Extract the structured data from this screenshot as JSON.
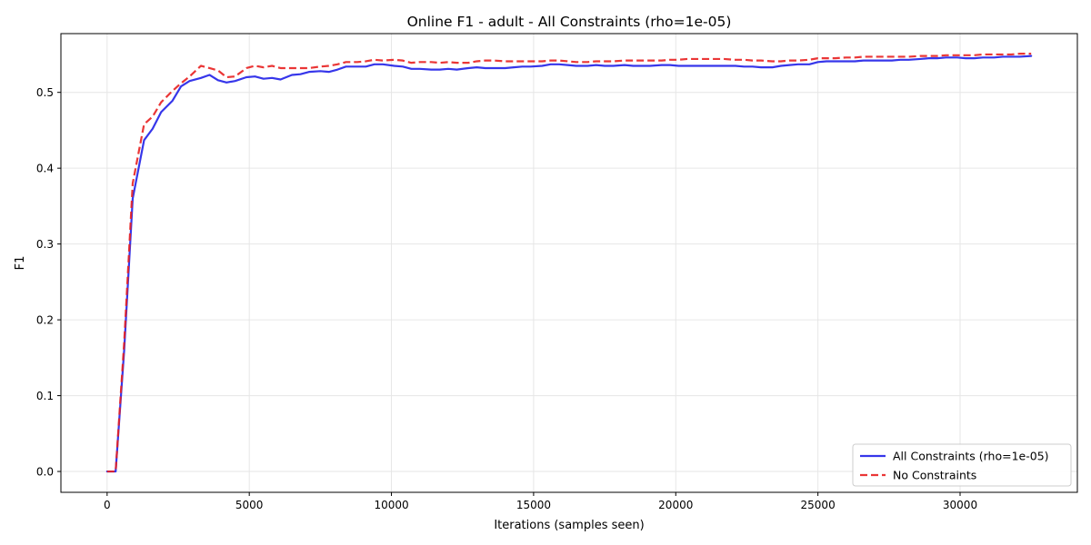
{
  "chart_data": {
    "type": "line",
    "title": "Online F1 - adult - All Constraints (rho=1e-05)",
    "xlabel": "Iterations (samples seen)",
    "ylabel": "F1",
    "xlim": [
      -1625,
      34125
    ],
    "ylim": [
      -0.0275,
      0.5775
    ],
    "xticks": [
      0,
      5000,
      10000,
      15000,
      20000,
      25000,
      30000
    ],
    "xtick_labels": [
      "0",
      "5000",
      "10000",
      "15000",
      "20000",
      "25000",
      "30000"
    ],
    "yticks": [
      0.0,
      0.1,
      0.2,
      0.3,
      0.4,
      0.5
    ],
    "ytick_labels": [
      "0.0",
      "0.1",
      "0.2",
      "0.3",
      "0.4",
      "0.5"
    ],
    "grid": true,
    "legend_position": "lower-right",
    "series": [
      {
        "name": "All Constraints (rho=1e-05)",
        "color": "#2020e8",
        "style": "solid",
        "x": [
          0,
          300,
          600,
          900,
          1300,
          1600,
          1900,
          2300,
          2600,
          2900,
          3300,
          3600,
          3900,
          4200,
          4500,
          4900,
          5200,
          5500,
          5800,
          6100,
          6500,
          6800,
          7100,
          7500,
          7800,
          8100,
          8400,
          8800,
          9100,
          9400,
          9700,
          10100,
          10400,
          10700,
          11000,
          11400,
          11700,
          12000,
          12300,
          12700,
          13000,
          13300,
          13600,
          14000,
          14300,
          14600,
          14900,
          15300,
          15600,
          15900,
          16200,
          16500,
          16900,
          17200,
          17500,
          17800,
          18200,
          18500,
          18800,
          19100,
          19500,
          19800,
          20100,
          20400,
          20800,
          21100,
          21400,
          21700,
          22100,
          22400,
          22700,
          23000,
          23400,
          23700,
          24000,
          24300,
          24700,
          25000,
          25300,
          25600,
          26000,
          26300,
          26600,
          26900,
          27300,
          27600,
          27900,
          28200,
          28600,
          28900,
          29200,
          29500,
          29900,
          30200,
          30500,
          30800,
          31200,
          31500,
          31800,
          32100,
          32500
        ],
        "y": [
          0.0,
          0.0,
          0.16,
          0.36,
          0.437,
          0.452,
          0.474,
          0.489,
          0.508,
          0.515,
          0.519,
          0.523,
          0.516,
          0.513,
          0.515,
          0.52,
          0.521,
          0.518,
          0.519,
          0.517,
          0.523,
          0.524,
          0.527,
          0.528,
          0.527,
          0.53,
          0.534,
          0.534,
          0.534,
          0.537,
          0.537,
          0.535,
          0.534,
          0.531,
          0.531,
          0.53,
          0.53,
          0.531,
          0.53,
          0.532,
          0.533,
          0.532,
          0.532,
          0.532,
          0.533,
          0.534,
          0.534,
          0.535,
          0.537,
          0.537,
          0.536,
          0.535,
          0.535,
          0.536,
          0.535,
          0.535,
          0.536,
          0.535,
          0.535,
          0.535,
          0.536,
          0.536,
          0.535,
          0.535,
          0.535,
          0.535,
          0.535,
          0.535,
          0.535,
          0.534,
          0.534,
          0.533,
          0.533,
          0.535,
          0.536,
          0.537,
          0.537,
          0.54,
          0.541,
          0.541,
          0.541,
          0.541,
          0.542,
          0.542,
          0.542,
          0.542,
          0.543,
          0.543,
          0.544,
          0.545,
          0.545,
          0.546,
          0.546,
          0.545,
          0.545,
          0.546,
          0.546,
          0.547,
          0.547,
          0.547,
          0.548
        ]
      },
      {
        "name": "No Constraints",
        "color": "#e82020",
        "style": "dashed",
        "x": [
          0,
          300,
          600,
          900,
          1300,
          1600,
          1900,
          2300,
          2600,
          2900,
          3300,
          3600,
          3900,
          4200,
          4500,
          4900,
          5200,
          5500,
          5800,
          6100,
          6500,
          6800,
          7100,
          7500,
          7800,
          8100,
          8400,
          8800,
          9100,
          9400,
          9700,
          10100,
          10400,
          10700,
          11000,
          11400,
          11700,
          12000,
          12300,
          12700,
          13000,
          13300,
          13600,
          14000,
          14300,
          14600,
          14900,
          15300,
          15600,
          15900,
          16200,
          16500,
          16900,
          17200,
          17500,
          17800,
          18200,
          18500,
          18800,
          19100,
          19500,
          19800,
          20100,
          20400,
          20800,
          21100,
          21400,
          21700,
          22100,
          22400,
          22700,
          23000,
          23400,
          23700,
          24000,
          24300,
          24700,
          25000,
          25300,
          25600,
          26000,
          26300,
          26600,
          26900,
          27300,
          27600,
          27900,
          28200,
          28600,
          28900,
          29200,
          29500,
          29900,
          30200,
          30500,
          30800,
          31200,
          31500,
          31800,
          32100,
          32500
        ],
        "y": [
          0.0,
          0.0,
          0.17,
          0.38,
          0.458,
          0.468,
          0.487,
          0.502,
          0.512,
          0.521,
          0.535,
          0.532,
          0.529,
          0.52,
          0.521,
          0.532,
          0.535,
          0.533,
          0.535,
          0.532,
          0.532,
          0.532,
          0.532,
          0.534,
          0.535,
          0.537,
          0.54,
          0.54,
          0.541,
          0.543,
          0.542,
          0.543,
          0.542,
          0.539,
          0.54,
          0.54,
          0.539,
          0.54,
          0.539,
          0.539,
          0.541,
          0.542,
          0.542,
          0.541,
          0.541,
          0.541,
          0.541,
          0.541,
          0.542,
          0.542,
          0.541,
          0.54,
          0.54,
          0.541,
          0.541,
          0.541,
          0.542,
          0.542,
          0.542,
          0.542,
          0.542,
          0.543,
          0.543,
          0.544,
          0.544,
          0.544,
          0.544,
          0.544,
          0.543,
          0.543,
          0.542,
          0.542,
          0.541,
          0.541,
          0.542,
          0.542,
          0.543,
          0.545,
          0.545,
          0.545,
          0.546,
          0.546,
          0.547,
          0.547,
          0.547,
          0.547,
          0.547,
          0.547,
          0.548,
          0.548,
          0.548,
          0.549,
          0.549,
          0.549,
          0.549,
          0.55,
          0.55,
          0.55,
          0.55,
          0.551,
          0.551
        ]
      }
    ]
  }
}
